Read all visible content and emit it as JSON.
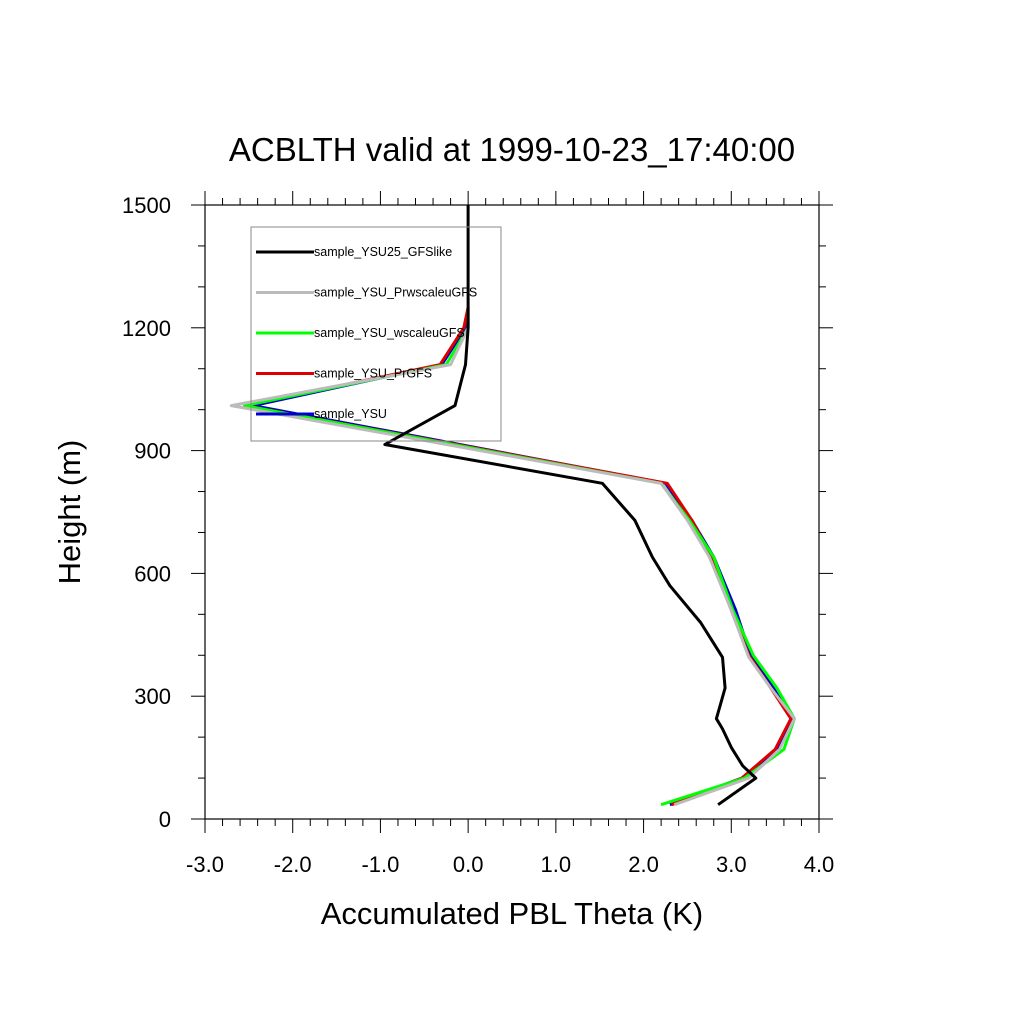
{
  "chart_data": {
    "type": "line",
    "title": "ACBLTH valid at 1999-10-23_17:40:00",
    "xlabel": "Accumulated PBL Theta (K)",
    "ylabel": "Height (m)",
    "xlim": [
      -3.0,
      4.0
    ],
    "ylim": [
      0,
      1500
    ],
    "x_ticks": [
      "-3.0",
      "-2.0",
      "-1.0",
      "0.0",
      "1.0",
      "2.0",
      "3.0",
      "4.0"
    ],
    "y_ticks": [
      "0",
      "300",
      "600",
      "900",
      "1200",
      "1500"
    ],
    "grid": false,
    "legend_position": "top-left",
    "series": [
      {
        "name": "sample_YSU25_GFSlike",
        "color": "#000000",
        "points": [
          [
            2.85,
            35
          ],
          [
            3.28,
            100
          ],
          [
            3.13,
            130
          ],
          [
            3.0,
            175
          ],
          [
            2.9,
            220
          ],
          [
            2.83,
            245
          ],
          [
            2.93,
            320
          ],
          [
            2.9,
            395
          ],
          [
            2.65,
            480
          ],
          [
            2.3,
            570
          ],
          [
            2.1,
            640
          ],
          [
            1.9,
            730
          ],
          [
            1.53,
            820
          ],
          [
            -0.95,
            915
          ],
          [
            -0.15,
            1010
          ],
          [
            -0.03,
            1110
          ],
          [
            0.0,
            1200
          ],
          [
            0.0,
            1320
          ],
          [
            0.0,
            1500
          ]
        ]
      },
      {
        "name": "sample_YSU_PrwscaleuGFS",
        "color": "#bbbbbb",
        "points": [
          [
            2.35,
            35
          ],
          [
            3.2,
            100
          ],
          [
            3.55,
            170
          ],
          [
            3.72,
            245
          ],
          [
            3.45,
            320
          ],
          [
            3.2,
            395
          ],
          [
            3.0,
            510
          ],
          [
            2.75,
            640
          ],
          [
            2.5,
            730
          ],
          [
            2.2,
            820
          ],
          [
            -2.7,
            1010
          ],
          [
            -0.2,
            1110
          ],
          [
            0.0,
            1200
          ],
          [
            0.0,
            1250
          ]
        ]
      },
      {
        "name": "sample_YSU_wscaleuGFS",
        "color": "#00ff00",
        "points": [
          [
            2.2,
            35
          ],
          [
            3.15,
            100
          ],
          [
            3.6,
            170
          ],
          [
            3.72,
            245
          ],
          [
            3.52,
            320
          ],
          [
            3.25,
            400
          ],
          [
            3.02,
            510
          ],
          [
            2.8,
            640
          ],
          [
            2.52,
            730
          ],
          [
            2.2,
            820
          ],
          [
            -2.55,
            1010
          ],
          [
            -0.25,
            1110
          ],
          [
            0.0,
            1200
          ],
          [
            0.0,
            1250
          ]
        ]
      },
      {
        "name": "sample_YSU_PrGFS",
        "color": "#dd0000",
        "points": [
          [
            2.32,
            35
          ],
          [
            3.12,
            100
          ],
          [
            3.5,
            170
          ],
          [
            3.68,
            245
          ],
          [
            3.45,
            320
          ],
          [
            3.2,
            400
          ],
          [
            3.0,
            510
          ],
          [
            2.78,
            640
          ],
          [
            2.55,
            730
          ],
          [
            2.27,
            820
          ],
          [
            -2.55,
            1010
          ],
          [
            -0.32,
            1110
          ],
          [
            -0.05,
            1200
          ],
          [
            0.0,
            1250
          ]
        ]
      },
      {
        "name": "sample_YSU",
        "color": "#0000cc",
        "points": [
          [
            2.3,
            35
          ],
          [
            3.12,
            100
          ],
          [
            3.52,
            170
          ],
          [
            3.7,
            245
          ],
          [
            3.48,
            320
          ],
          [
            3.22,
            400
          ],
          [
            3.05,
            510
          ],
          [
            2.8,
            640
          ],
          [
            2.55,
            730
          ],
          [
            2.25,
            820
          ],
          [
            -2.45,
            1010
          ],
          [
            -0.3,
            1110
          ],
          [
            -0.03,
            1200
          ],
          [
            0.0,
            1250
          ]
        ]
      }
    ]
  }
}
